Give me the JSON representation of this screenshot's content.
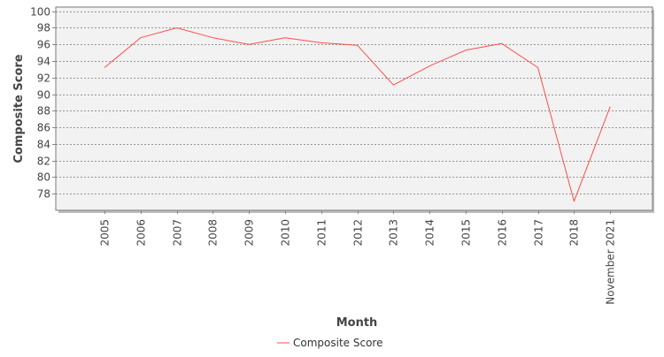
{
  "chart_data": {
    "type": "line",
    "title": "",
    "xlabel": "Month",
    "ylabel": "Composite Score",
    "ylim": [
      76,
      100.5
    ],
    "y_ticks": [
      78,
      80,
      82,
      84,
      86,
      88,
      90,
      92,
      94,
      96,
      98,
      100
    ],
    "categories": [
      "2005",
      "2006",
      "2007",
      "2008",
      "2009",
      "2010",
      "2011",
      "2012",
      "2013",
      "2014",
      "2015",
      "2016",
      "2017",
      "2018",
      "November 2021"
    ],
    "series": [
      {
        "name": "Composite Score",
        "color": "#ff4c4c",
        "values": [
          93.2,
          96.8,
          98.0,
          96.8,
          96.0,
          96.8,
          96.2,
          95.9,
          91.1,
          93.4,
          95.3,
          96.1,
          93.2,
          77.1,
          88.5
        ]
      }
    ],
    "grid": true,
    "grid_style": "dashed",
    "legend_position": "bottom",
    "plot_background": "#f2f2f2"
  }
}
